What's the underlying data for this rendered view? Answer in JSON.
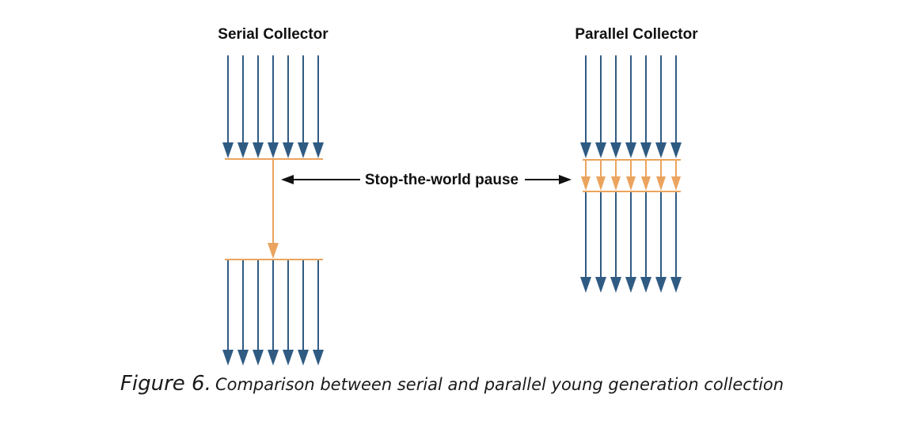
{
  "serial": {
    "title": "Serial Collector"
  },
  "parallel": {
    "title": "Parallel Collector"
  },
  "pause_label": "Stop-the-world pause",
  "caption": {
    "figure": "Figure 6.",
    "text": "Comparison between serial and parallel young generation collection"
  },
  "colors": {
    "thread": "#2f5b83",
    "gc": "#eba45e",
    "label_arrow": "#111111"
  }
}
